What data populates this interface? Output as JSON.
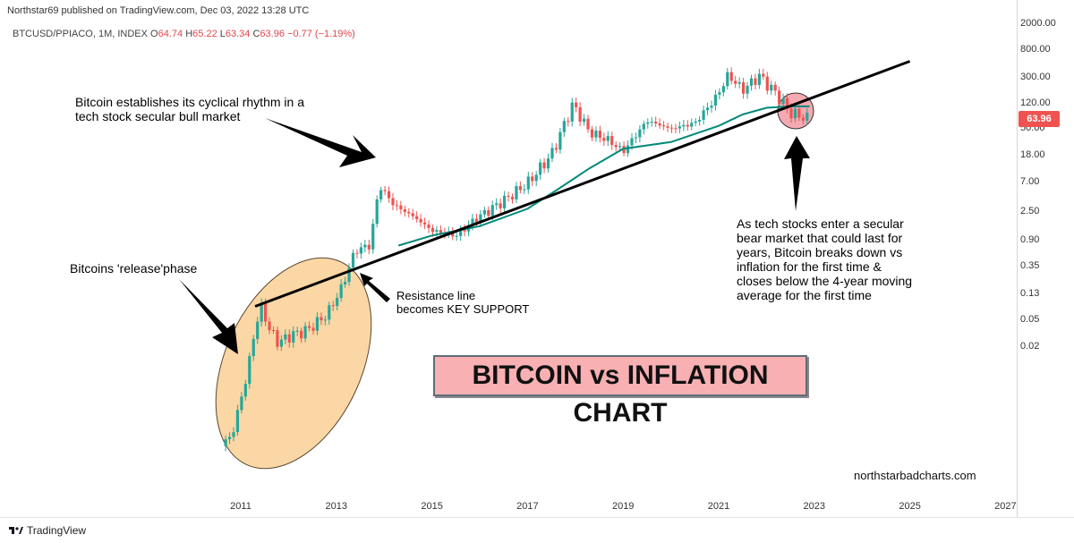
{
  "header": {
    "publisher_line": "Northstar69 published on TradingView.com, Dec 03, 2022 13:28 UTC"
  },
  "symbol": {
    "name": "BTCUSD/PPIACO, 1M, INDEX",
    "open_label": "O",
    "open": "64.74",
    "high_label": "H",
    "high": "65.22",
    "low_label": "L",
    "low": "63.34",
    "close_label": "C",
    "close": "63.96",
    "change": "−0.77 (−1.19%)"
  },
  "last_price": "63.96",
  "annotations": {
    "top_left": [
      "Bitcoin establishes its cyclical rhythm in a",
      "tech stock secular bull market"
    ],
    "release": "Bitcoins 'release'phase",
    "resistance": [
      "Resistance line",
      "becomes KEY SUPPORT"
    ],
    "bear": [
      "As tech stocks enter a secular",
      "bear market that could last for",
      "years, Bitcoin breaks down vs",
      "inflation for the first time &",
      "closes below the 4-year moving",
      "average for the first time"
    ]
  },
  "banner": "BITCOIN vs INFLATION CHART",
  "watermark": "northstarbadcharts.com",
  "footer": {
    "brand": "TradingView"
  },
  "colors": {
    "up": "#26a69a",
    "down": "#ef5350",
    "ma": "#00897b",
    "ellipse_fill": "#fbd7a5",
    "ellipse_stroke": "#5a4630",
    "circle_fill": "#f5a9b0",
    "banner_bg": "#f8b0b3"
  },
  "chart_data": {
    "type": "candlestick",
    "title": "BITCOIN vs INFLATION CHART",
    "y_scale": "log",
    "y_ticks": [
      "2000.00",
      "800.00",
      "300.00",
      "120.00",
      "50.00",
      "18.00",
      "7.00",
      "2.50",
      "0.90",
      "0.35",
      "0.13",
      "0.05",
      "0.02"
    ],
    "x_ticks": [
      "2011",
      "2013",
      "2015",
      "2017",
      "2019",
      "2021",
      "2023",
      "2025",
      "2027"
    ],
    "series": [
      {
        "name": "BTCUSD/PPIACO",
        "points": [
          {
            "t": 2010.6,
            "v": 0.00055
          },
          {
            "t": 2010.75,
            "v": 0.0007
          },
          {
            "t": 2010.9,
            "v": 0.0013
          },
          {
            "t": 2011.0,
            "v": 0.003
          },
          {
            "t": 2011.15,
            "v": 0.008
          },
          {
            "t": 2011.3,
            "v": 0.04
          },
          {
            "t": 2011.45,
            "v": 0.08
          },
          {
            "t": 2011.6,
            "v": 0.035
          },
          {
            "t": 2011.8,
            "v": 0.022
          },
          {
            "t": 2012.0,
            "v": 0.028
          },
          {
            "t": 2012.4,
            "v": 0.035
          },
          {
            "t": 2012.8,
            "v": 0.06
          },
          {
            "t": 2013.1,
            "v": 0.15
          },
          {
            "t": 2013.4,
            "v": 0.6
          },
          {
            "t": 2013.7,
            "v": 0.7
          },
          {
            "t": 2013.9,
            "v": 6.0
          },
          {
            "t": 2014.2,
            "v": 3.0
          },
          {
            "t": 2014.6,
            "v": 2.0
          },
          {
            "t": 2015.0,
            "v": 1.2
          },
          {
            "t": 2015.5,
            "v": 1.0
          },
          {
            "t": 2016.0,
            "v": 2.0
          },
          {
            "t": 2016.5,
            "v": 3.5
          },
          {
            "t": 2017.0,
            "v": 6.5
          },
          {
            "t": 2017.5,
            "v": 18.0
          },
          {
            "t": 2017.95,
            "v": 110.0
          },
          {
            "t": 2018.3,
            "v": 40.0
          },
          {
            "t": 2018.7,
            "v": 30.0
          },
          {
            "t": 2019.0,
            "v": 20.0
          },
          {
            "t": 2019.5,
            "v": 60.0
          },
          {
            "t": 2020.0,
            "v": 45.0
          },
          {
            "t": 2020.5,
            "v": 55.0
          },
          {
            "t": 2020.95,
            "v": 140.0
          },
          {
            "t": 2021.2,
            "v": 310.0
          },
          {
            "t": 2021.5,
            "v": 180.0
          },
          {
            "t": 2021.85,
            "v": 300.0
          },
          {
            "t": 2022.2,
            "v": 160.0
          },
          {
            "t": 2022.5,
            "v": 80.0
          },
          {
            "t": 2022.9,
            "v": 63.96
          }
        ]
      },
      {
        "name": "4-year moving average",
        "points": [
          {
            "t": 2014.3,
            "v": 0.7
          },
          {
            "t": 2015.0,
            "v": 1.0
          },
          {
            "t": 2016.0,
            "v": 1.4
          },
          {
            "t": 2017.0,
            "v": 2.6
          },
          {
            "t": 2017.6,
            "v": 5.0
          },
          {
            "t": 2018.3,
            "v": 11.0
          },
          {
            "t": 2019.0,
            "v": 22.0
          },
          {
            "t": 2020.0,
            "v": 28.0
          },
          {
            "t": 2021.0,
            "v": 50.0
          },
          {
            "t": 2021.5,
            "v": 75.0
          },
          {
            "t": 2022.0,
            "v": 95.0
          },
          {
            "t": 2022.5,
            "v": 100.0
          },
          {
            "t": 2022.9,
            "v": 100.0
          }
        ]
      },
      {
        "name": "trendline",
        "points": [
          {
            "t": 2011.3,
            "v": 0.08
          },
          {
            "t": 2025.0,
            "v": 500.0
          }
        ]
      }
    ],
    "xlim": [
      2010.0,
      2027.3
    ],
    "grid": false,
    "legend": "none"
  }
}
